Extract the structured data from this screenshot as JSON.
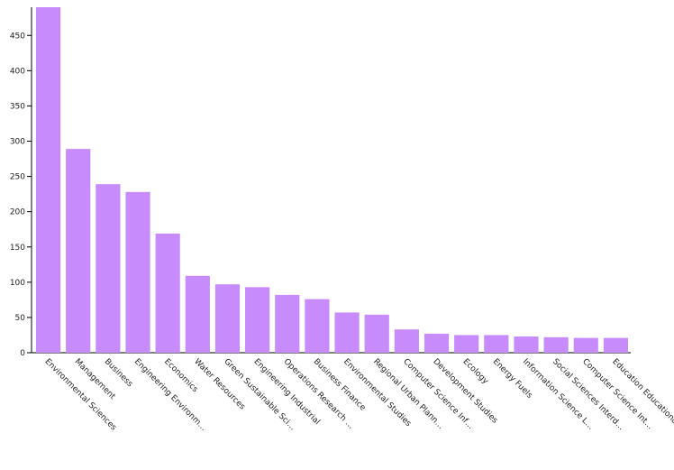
{
  "chart_data": {
    "type": "bar",
    "categories": [
      "Environmental Sciences",
      "Management",
      "Business",
      "Engineering Environm…",
      "Economics",
      "Water Resources",
      "Green Sustainable Sci…",
      "Engineering Industrial",
      "Operations Research …",
      "Business Finance",
      "Environmental Studies",
      "Regional Urban Plann…",
      "Computer Science Inf…",
      "Development Studies",
      "Ecology",
      "Energy Fuels",
      "Information Science L…",
      "Social Sciences Interd…",
      "Computer Science Int…",
      "Education Educationa…"
    ],
    "values": [
      490,
      289,
      239,
      228,
      169,
      109,
      97,
      93,
      82,
      76,
      57,
      54,
      33,
      27,
      25,
      25,
      23,
      22,
      21,
      21
    ],
    "color": "#c78bfc",
    "ylim": [
      0,
      490
    ],
    "yticks": [
      0,
      50,
      100,
      150,
      200,
      250,
      300,
      350,
      400,
      450
    ]
  }
}
